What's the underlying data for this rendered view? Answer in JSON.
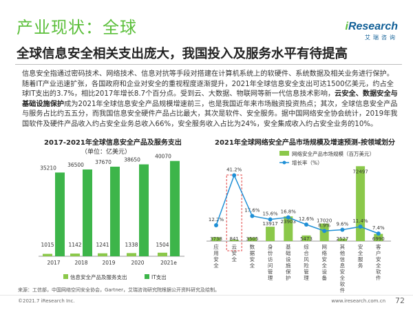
{
  "header": {
    "title": "产业现状：全球",
    "logo_i": "i",
    "logo_rest": "Research",
    "logo_sub": "艾瑞咨询",
    "headline": "全球信息安全相关支出庞大，我国投入及服务水平有待提高"
  },
  "body": {
    "p1": "信息安全指通过密码技术、网络技术、信息对抗等手段对搭建在计算机系统上的软硬件、系统数据及相关业务进行保护。随着IT产业迅速扩张，各国政府和企业对安全的重视程度逐渐提升，2021年全球信息安全支出可达1500亿美元，约占全球IT支出的3.7%，相比2017年增长8.7个百分点。受到云、大数据、物联网等新一代信息技术影响，",
    "p1_bold": "云安全、数据安全与基础设施保护",
    "p2": "成为2021年全球信息安全产品规模增速前三，也是我国近年来市场融资投资热点；其次，全球信息安全产品与服务占比约五五分，而我国信息安全硬件产品占比最大，其次是软件、安全服务。据中国网络安全协会统计，2019年我国软件及硬件产品收入约占安全业务总收入66%，安全服务收入占比为24%，安全集成收入约占安全业务的10%。"
  },
  "left_chart": {
    "title": "2017-2021年全球信息安全产品及服务支出",
    "unit": "（单位：亿美元）"
  },
  "right_chart": {
    "title": "2021年全球网络安全产品市场规模及增速预测-按领域划分"
  },
  "colors": {
    "green": "#3db54a",
    "light_green": "#8bc84a",
    "blue": "#1e8fd6",
    "red": "#e04040"
  },
  "chart_data": [
    {
      "type": "bar",
      "title": "2017-2021年全球信息安全产品及服务支出",
      "ylabel": "（单位：亿美元）",
      "categories": [
        "2017",
        "2018",
        "2019",
        "2020",
        "2021e"
      ],
      "series": [
        {
          "name": "信息安全产品及服务支出",
          "values": [
            1015,
            1142,
            1241,
            1338,
            1504
          ]
        },
        {
          "name": "IT支出",
          "values": [
            35210,
            36500,
            37670,
            38650,
            40070
          ]
        }
      ],
      "legend": "bottom"
    },
    {
      "type": "bar",
      "title": "2021年全球网络安全产品市场规模及增速预测-按领域划分",
      "categories": [
        "应用安全",
        "云安全",
        "数据安全",
        "身份访问管理",
        "基础设施保护",
        "综合风险管理",
        "网络安全设备",
        "其他信息安全软件",
        "安全服务",
        "客户安全软件"
      ],
      "series": [
        {
          "name": "网络安全产品市场规模（百万美元）",
          "values": [
            3738,
            841,
            3505,
            13917,
            23903,
            5473,
            17020,
            2527,
            72497,
            6990
          ]
        },
        {
          "name": "增长率（%）",
          "type": "line",
          "values": [
            12.2,
            41.2,
            17.6,
            15.6,
            16.8,
            12.6,
            8.9,
            9.6,
            11.4,
            7.4
          ],
          "labels": [
            "12.2%",
            "41.2%",
            "17.6%",
            "15.6%",
            "16.8%",
            "12.6%",
            "8.9%",
            "9.6%",
            "11.4%",
            "7.4%"
          ]
        }
      ],
      "highlight": "云安全",
      "legend": "top-right"
    }
  ],
  "footer": {
    "source": "来源：工信部，中国网络空间安全协会，Gartner，艾瑞咨询研究院根据公开资料研究及绘制。",
    "copyright": "©2021.7 iResearch Inc.",
    "site": "www.iresearch.com.cn",
    "page": "72"
  }
}
